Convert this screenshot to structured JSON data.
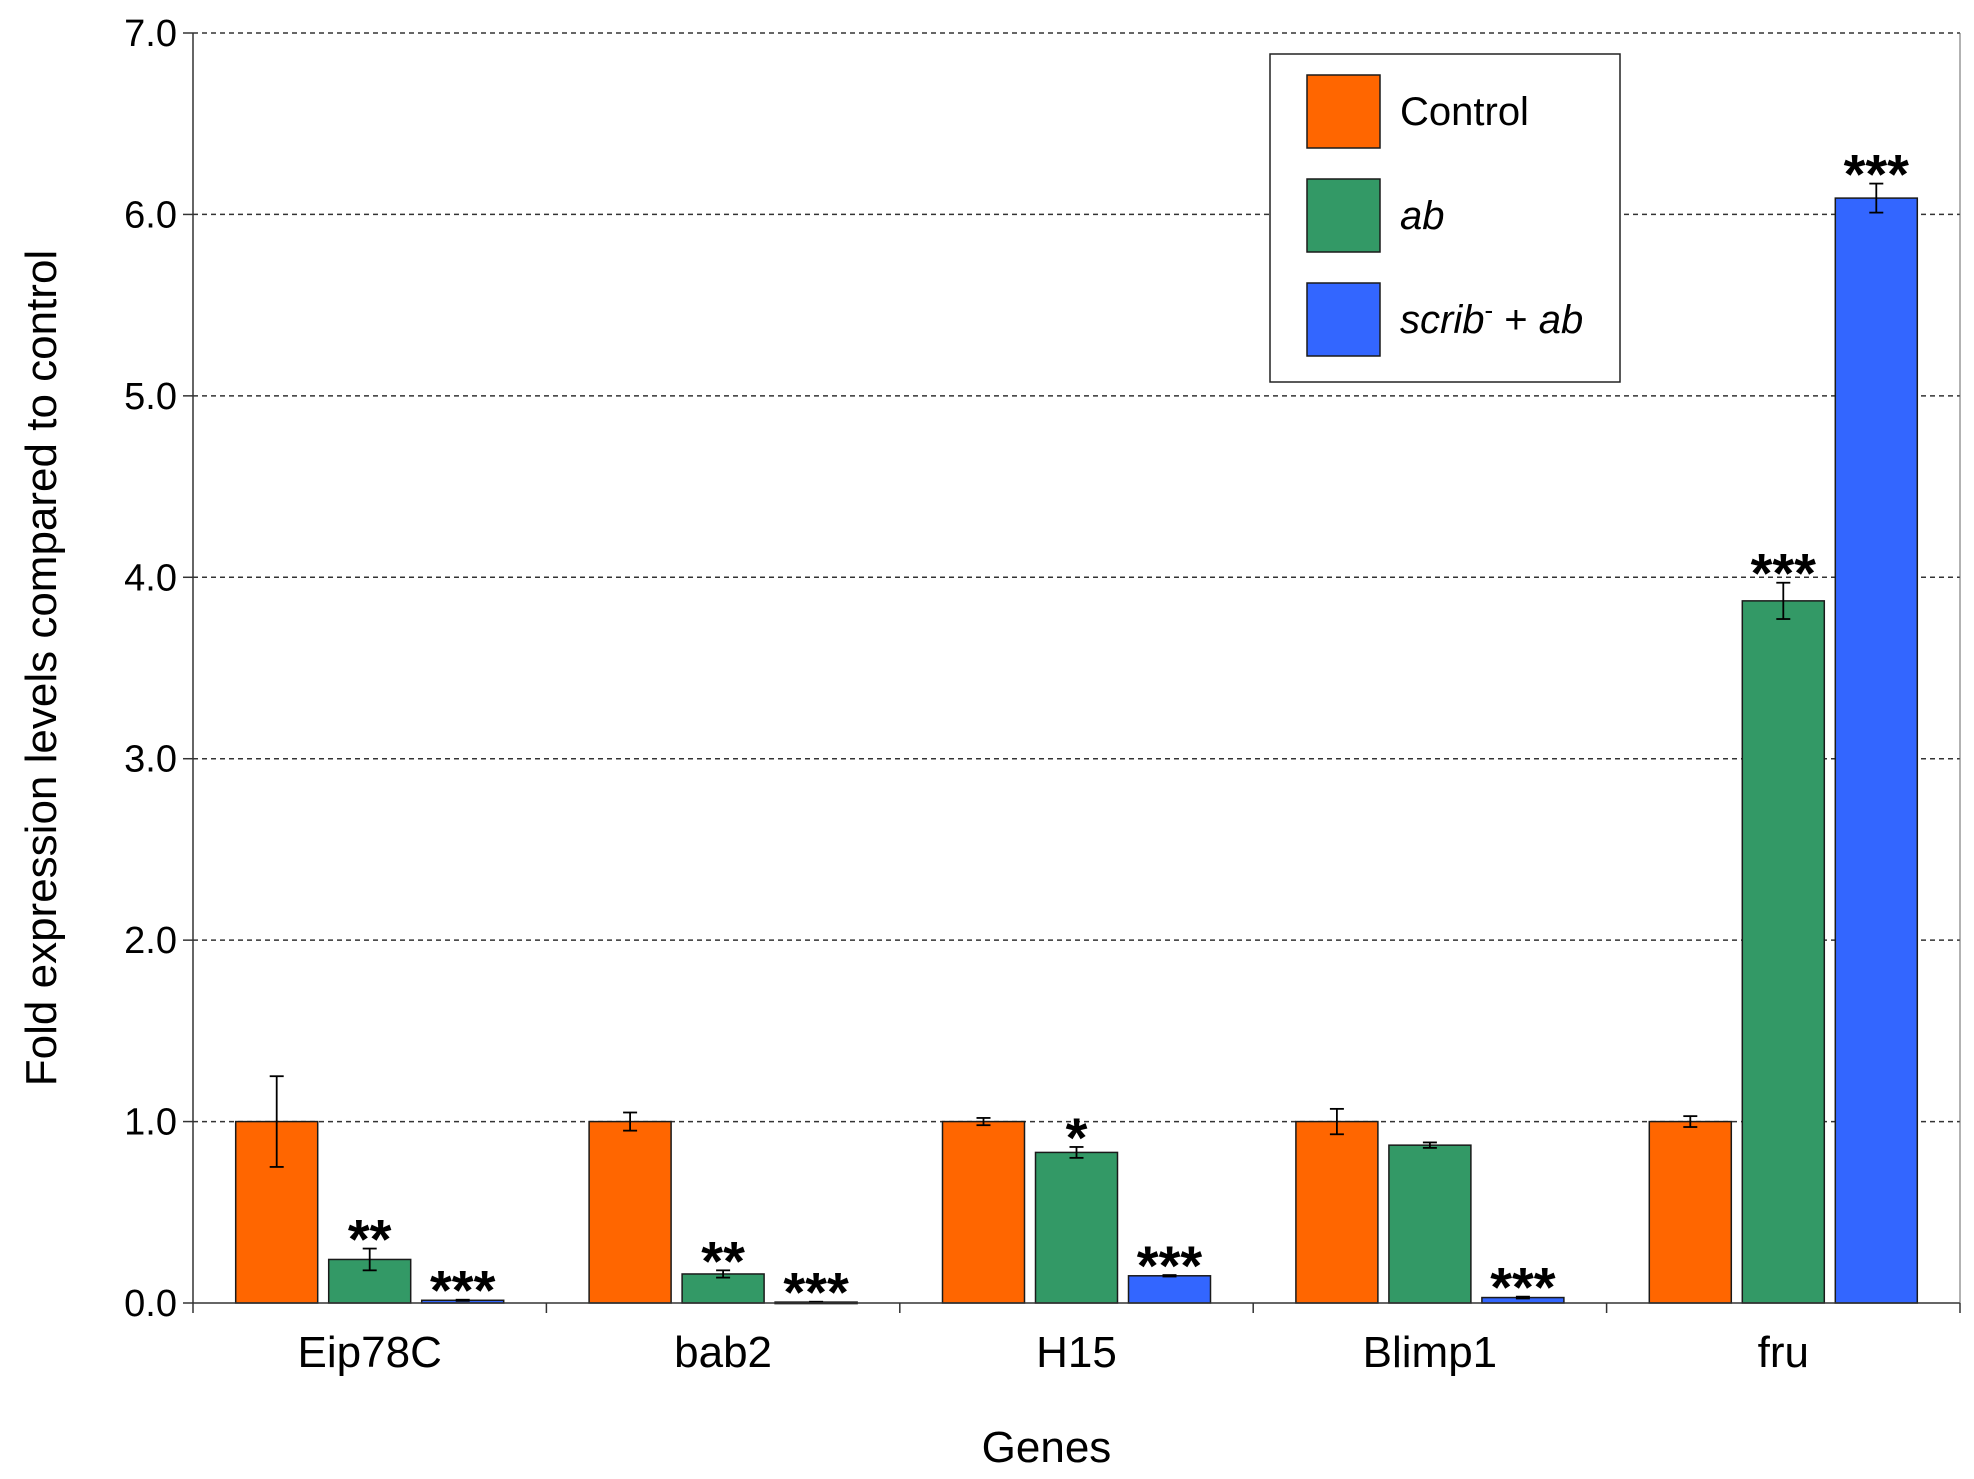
{
  "chart_data": {
    "type": "bar",
    "title": "",
    "xlabel": "Genes",
    "ylabel": "Fold expression levels compared to control",
    "ylim": [
      0,
      7
    ],
    "yticks": [
      "0.0",
      "1.0",
      "2.0",
      "3.0",
      "4.0",
      "5.0",
      "6.0",
      "7.0"
    ],
    "grid": "horizontal dashed",
    "legend_position": "top-right",
    "categories": [
      "Eip78C",
      "bab2",
      "H15",
      "Blimp1",
      "fru"
    ],
    "series": [
      {
        "name": "Control",
        "color": "#ff6600",
        "values": [
          1.0,
          1.0,
          1.0,
          1.0,
          1.0
        ],
        "errors": [
          0.25,
          0.05,
          0.02,
          0.07,
          0.03
        ],
        "significance": [
          "",
          "",
          "",
          "",
          ""
        ]
      },
      {
        "name": "ab",
        "color": "#339966",
        "values": [
          0.24,
          0.16,
          0.83,
          0.87,
          3.87
        ],
        "errors": [
          0.06,
          0.02,
          0.03,
          0.015,
          0.1
        ],
        "significance": [
          "**",
          "**",
          "*",
          "",
          "***"
        ]
      },
      {
        "name": "scrib- + ab",
        "color": "#3366ff",
        "values": [
          0.015,
          0.005,
          0.15,
          0.03,
          6.09
        ],
        "errors": [
          0.003,
          0.002,
          0.004,
          0.005,
          0.08
        ],
        "significance": [
          "***",
          "***",
          "***",
          "***",
          "***"
        ]
      }
    ],
    "legend": {
      "entries": [
        {
          "text": "Control",
          "italic": false
        },
        {
          "text": "ab",
          "italic": true
        },
        {
          "parts": [
            {
              "text": "scrib",
              "italic": true
            },
            {
              "text": "-",
              "superscript": true
            },
            {
              "text": " + "
            },
            {
              "text": "ab",
              "italic": true
            }
          ]
        }
      ]
    }
  }
}
